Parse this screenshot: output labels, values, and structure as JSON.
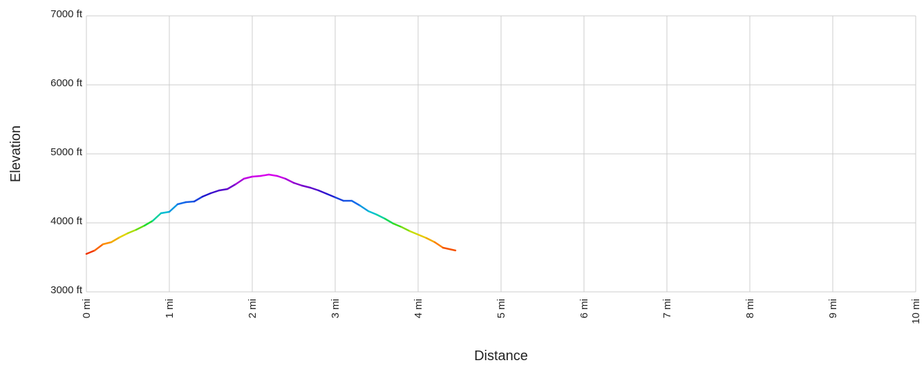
{
  "chart_data": {
    "type": "line",
    "title": "",
    "xlabel": "Distance",
    "ylabel": "Elevation",
    "xlim": [
      0,
      10
    ],
    "ylim": [
      3000,
      7000
    ],
    "grid": true,
    "legend": "none",
    "x_ticks": [
      {
        "value": 0,
        "label": "0 mi"
      },
      {
        "value": 1,
        "label": "1 mi"
      },
      {
        "value": 2,
        "label": "2 mi"
      },
      {
        "value": 3,
        "label": "3 mi"
      },
      {
        "value": 4,
        "label": "4 mi"
      },
      {
        "value": 5,
        "label": "5 mi"
      },
      {
        "value": 6,
        "label": "6 mi"
      },
      {
        "value": 7,
        "label": "7 mi"
      },
      {
        "value": 8,
        "label": "8 mi"
      },
      {
        "value": 9,
        "label": "9 mi"
      },
      {
        "value": 10,
        "label": "10 mi"
      }
    ],
    "y_ticks": [
      {
        "value": 3000,
        "label": "3000 ft"
      },
      {
        "value": 4000,
        "label": "4000 ft"
      },
      {
        "value": 5000,
        "label": "5000 ft"
      },
      {
        "value": 6000,
        "label": "6000 ft"
      },
      {
        "value": 7000,
        "label": "7000 ft"
      }
    ],
    "series": [
      {
        "x": [
          0.0,
          0.1,
          0.2,
          0.3,
          0.4,
          0.5,
          0.6,
          0.7,
          0.8,
          0.9,
          1.0,
          1.1,
          1.2,
          1.3,
          1.4,
          1.5,
          1.6,
          1.7,
          1.8,
          1.9,
          2.0,
          2.1,
          2.2,
          2.3,
          2.4,
          2.5,
          2.6,
          2.7,
          2.8,
          2.9,
          3.0,
          3.1,
          3.2,
          3.3,
          3.4,
          3.5,
          3.6,
          3.7,
          3.8,
          3.9,
          4.0,
          4.1,
          4.2,
          4.3,
          4.45
        ],
        "y": [
          3550,
          3600,
          3690,
          3720,
          3790,
          3850,
          3900,
          3960,
          4030,
          4140,
          4160,
          4270,
          4300,
          4310,
          4380,
          4430,
          4470,
          4490,
          4560,
          4640,
          4670,
          4680,
          4700,
          4680,
          4640,
          4580,
          4540,
          4510,
          4470,
          4420,
          4370,
          4320,
          4320,
          4250,
          4170,
          4120,
          4060,
          3990,
          3940,
          3880,
          3830,
          3780,
          3720,
          3640,
          3600
        ],
        "color_scale": [
          "#ee2200",
          "#ff8800",
          "#dddd00",
          "#22dd22",
          "#00cccc",
          "#1177ee",
          "#2211cc",
          "#8800cc",
          "#dd00ee"
        ]
      }
    ]
  }
}
